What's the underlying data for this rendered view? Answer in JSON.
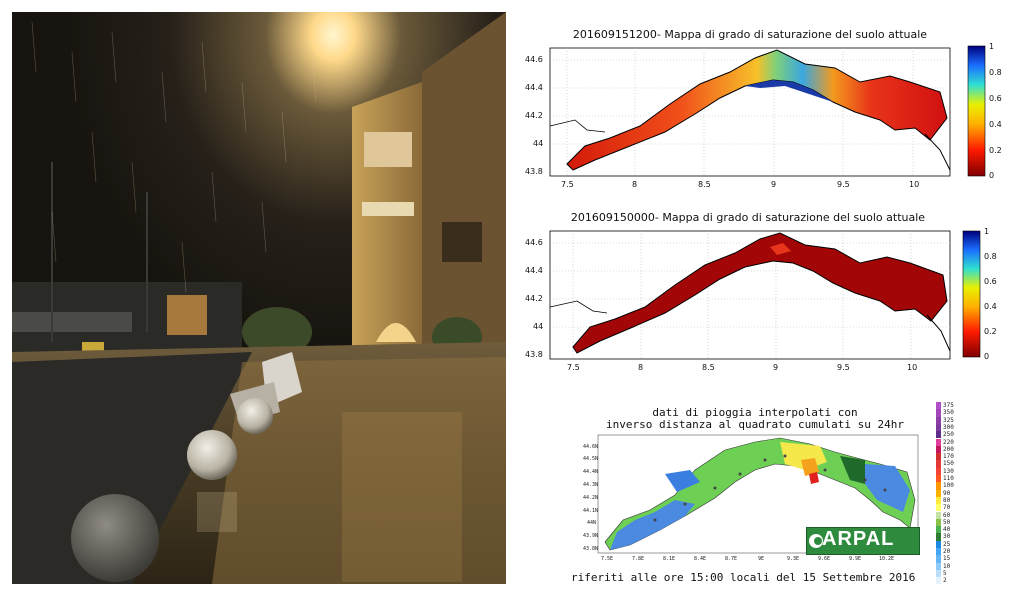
{
  "photo": {
    "description_icon": "flooded-street-night-photo-icon"
  },
  "map1": {
    "title": "201609151200- Mappa di grado di saturazione del suolo attuale",
    "y_ticks": [
      "44.6",
      "44.4",
      "44.2",
      "44",
      "43.8"
    ],
    "x_ticks": [
      "7.5",
      "8",
      "8.5",
      "9",
      "9.5",
      "10"
    ],
    "colorbar_ticks": [
      "1",
      "0.8",
      "0.6",
      "0.4",
      "0.2",
      "0"
    ]
  },
  "map2": {
    "title": "201609150000- Mappa di grado di saturazione del suolo attuale",
    "y_ticks": [
      "44.6",
      "44.4",
      "44.2",
      "44",
      "43.8"
    ],
    "x_ticks": [
      "7.5",
      "8",
      "8.5",
      "9",
      "9.5",
      "10"
    ],
    "colorbar_ticks": [
      "1",
      "0.8",
      "0.6",
      "0.4",
      "0.2",
      "0"
    ]
  },
  "rain_map": {
    "title_line1": "dati di pioggia interpolati con",
    "title_line2": "inverso distanza al quadrato cumulati su 24hr",
    "subtitle": "riferiti alle ore 15:00 locali del 15 Settembre 2016",
    "logo_text": "ARPAL",
    "y_ticks": [
      "44.6N",
      "44.5N",
      "44.4N",
      "44.3N",
      "44.2N",
      "44.1N",
      "44N",
      "43.9N",
      "43.8N"
    ],
    "x_ticks": [
      "7.5E",
      "7.8E",
      "8.1E",
      "8.4E",
      "8.7E",
      "9E",
      "9.3E",
      "9.6E",
      "9.9E",
      "10.2E"
    ],
    "legend_values": [
      "375",
      "350",
      "325",
      "300",
      "250",
      "220",
      "200",
      "170",
      "150",
      "130",
      "110",
      "100",
      "90",
      "80",
      "70",
      "60",
      "50",
      "40",
      "30",
      "25",
      "20",
      "15",
      "10",
      "5",
      "2"
    ],
    "legend_colors": [
      "#b04fc7",
      "#a347b8",
      "#8e3ea8",
      "#7b3a9c",
      "#5e2f8a",
      "#e03d9c",
      "#c2185b",
      "#d32f2f",
      "#e53935",
      "#f44336",
      "#ff5722",
      "#ff9800",
      "#ffb300",
      "#ffeb3b",
      "#ffff66",
      "#c5e1a5",
      "#8bc34a",
      "#4caf50",
      "#2e7d32",
      "#1e88e5",
      "#42a5f5",
      "#64b5f6",
      "#90caf9",
      "#bbdefb",
      "#e3f2fd"
    ]
  }
}
